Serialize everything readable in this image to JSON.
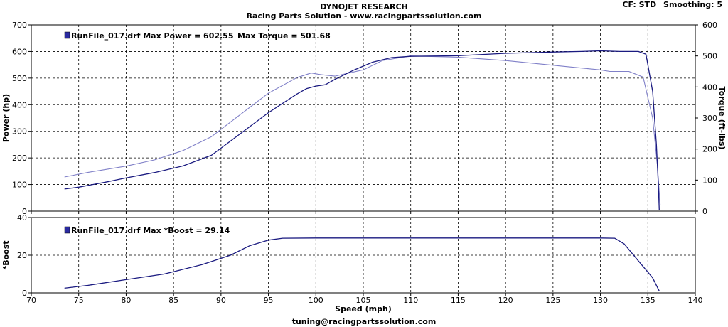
{
  "header": {
    "title": "DYNOJET RESEARCH",
    "subtitle": "Racing Parts Solution - www.racingpartssolution.com",
    "cf_label": "CF: STD",
    "smoothing_label": "Smoothing: 5"
  },
  "footer": {
    "email": "tuning@racingpartssolution.com"
  },
  "colors": {
    "power": "#1a1a80",
    "torque": "#8080c8",
    "boost": "#1a1a80",
    "grid": "#000000",
    "legend_swatch": "#2a2aa0"
  },
  "chart_data": [
    {
      "type": "line",
      "title": "",
      "xlabel": "Speed (mph)",
      "ylabel": "Power (hp)",
      "y2label": "Torque (ft-lbs)",
      "xlim": [
        70,
        140
      ],
      "ylim": [
        0,
        700
      ],
      "y2lim": [
        0,
        600
      ],
      "xticks": [
        70,
        75,
        80,
        85,
        90,
        95,
        100,
        105,
        110,
        115,
        120,
        125,
        130,
        135,
        140
      ],
      "yticks": [
        0,
        100,
        200,
        300,
        400,
        500,
        600,
        700
      ],
      "y2ticks": [
        0,
        100,
        200,
        300,
        400,
        500,
        600
      ],
      "grid": true,
      "legend": {
        "file": "RunFile_017.drf",
        "text1": "RunFile_017.drf Max Power = 602.55",
        "text2": "Max Torque = 501.68",
        "placement": "top-left"
      },
      "series": [
        {
          "name": "Power",
          "axis": "left",
          "x": [
            73.5,
            75,
            78,
            80,
            83,
            86,
            89,
            92,
            95,
            98,
            99,
            100,
            101,
            102,
            104,
            106,
            108,
            110,
            115,
            120,
            125,
            128,
            130,
            132,
            134,
            134.8,
            135.5,
            135.9,
            136.1,
            136.2
          ],
          "y": [
            83,
            90,
            110,
            125,
            145,
            170,
            210,
            290,
            370,
            440,
            460,
            470,
            475,
            495,
            530,
            560,
            577,
            582,
            584,
            593,
            598,
            600,
            602.55,
            600,
            600,
            590,
            450,
            250,
            100,
            5
          ]
        },
        {
          "name": "Torque",
          "axis": "right",
          "x": [
            73.5,
            76,
            80,
            83,
            86,
            89,
            92,
            95,
            98,
            99.5,
            100.5,
            102,
            105,
            107,
            110,
            115,
            120,
            125,
            130,
            131,
            133,
            134.5,
            135.5,
            136,
            136.3
          ],
          "y": [
            110,
            125,
            145,
            165,
            195,
            240,
            310,
            380,
            430,
            445,
            440,
            435,
            455,
            485,
            500,
            496,
            485,
            470,
            455,
            450,
            450,
            432,
            300,
            150,
            20
          ]
        }
      ]
    },
    {
      "type": "line",
      "title": "",
      "xlabel": "Speed (mph)",
      "ylabel": "*Boost",
      "xlim": [
        70,
        140
      ],
      "ylim": [
        0,
        40
      ],
      "xticks": [
        70,
        75,
        80,
        85,
        90,
        95,
        100,
        105,
        110,
        115,
        120,
        125,
        130,
        135,
        140
      ],
      "yticks": [
        0,
        20,
        40
      ],
      "grid": true,
      "legend": {
        "text1": "RunFile_017.drf Max *Boost = 29.14",
        "placement": "top-left"
      },
      "series": [
        {
          "name": "*Boost",
          "x": [
            73.5,
            76,
            80,
            84,
            88,
            91,
            93,
            95,
            96.5,
            100,
            110,
            120,
            130,
            131.5,
            132.5,
            134,
            135.5,
            136.2
          ],
          "y": [
            2.5,
            4,
            7,
            10,
            15,
            20,
            25,
            28,
            29,
            29.14,
            29.14,
            29.14,
            29.14,
            29,
            26,
            17,
            8,
            1
          ]
        }
      ]
    }
  ]
}
